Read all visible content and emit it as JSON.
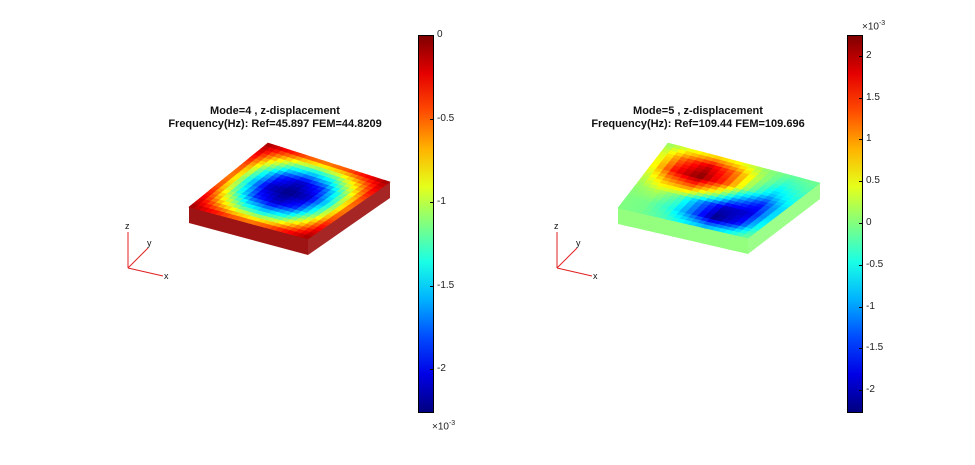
{
  "chart_data": [
    {
      "type": "heatmap",
      "title": "Mode=4 , z-displacement",
      "subtitle": "Frequency(Hz): Ref=45.897 FEM=44.8209",
      "colorbar": {
        "min": -2.25,
        "max": 0,
        "ticks": [
          0,
          -0.5,
          -1,
          -1.5,
          -2
        ],
        "tick_labels": [
          "0",
          "-0.5",
          "-1",
          "-1.5",
          "-2"
        ],
        "exponent_label": "×10",
        "exponent_power": "-3",
        "exponent_position": "bottom",
        "colormap": "jet"
      },
      "axes_triad": [
        "x",
        "y",
        "z"
      ],
      "values": [
        [
          -0.05,
          -0.2,
          -0.35,
          -0.42,
          -0.35,
          -0.2,
          -0.05
        ],
        [
          -0.2,
          -0.75,
          -1.2,
          -1.4,
          -1.2,
          -0.75,
          -0.2
        ],
        [
          -0.35,
          -1.2,
          -1.85,
          -2.1,
          -1.85,
          -1.2,
          -0.35
        ],
        [
          -0.42,
          -1.4,
          -2.1,
          -2.25,
          -2.1,
          -1.4,
          -0.42
        ],
        [
          -0.35,
          -1.2,
          -1.85,
          -2.1,
          -1.85,
          -1.2,
          -0.35
        ],
        [
          -0.2,
          -0.75,
          -1.2,
          -1.4,
          -1.2,
          -0.75,
          -0.2
        ],
        [
          -0.05,
          -0.2,
          -0.35,
          -0.42,
          -0.35,
          -0.2,
          -0.05
        ]
      ]
    },
    {
      "type": "heatmap",
      "title": "Mode=5 , z-displacement",
      "subtitle": "Frequency(Hz): Ref=109.44 FEM=109.696",
      "colorbar": {
        "min": -2.25,
        "max": 2.25,
        "ticks": [
          2,
          1.5,
          1,
          0.5,
          0,
          -0.5,
          -1,
          -1.5,
          -2
        ],
        "tick_labels": [
          "2",
          "1.5",
          "1",
          "0.5",
          "0",
          "-0.5",
          "-1",
          "-1.5",
          "-2"
        ],
        "exponent_label": "×10",
        "exponent_power": "-3",
        "exponent_position": "top",
        "colormap": "jet"
      },
      "axes_triad": [
        "x",
        "y",
        "z"
      ],
      "values": [
        [
          0.05,
          0.4,
          0.6,
          0.4,
          0.05,
          -0.1,
          -0.05
        ],
        [
          0.3,
          1.3,
          1.9,
          1.3,
          0.2,
          -0.4,
          -0.2
        ],
        [
          0.4,
          1.7,
          2.25,
          1.5,
          0.1,
          -0.8,
          -0.4
        ],
        [
          0.2,
          0.9,
          1.2,
          0.4,
          -0.9,
          -1.6,
          -0.6
        ],
        [
          0.05,
          0.2,
          -0.2,
          -1.2,
          -2.0,
          -1.9,
          -0.5
        ],
        [
          0.0,
          -0.05,
          -0.4,
          -1.3,
          -2.25,
          -1.7,
          -0.3
        ],
        [
          0.0,
          -0.05,
          -0.2,
          -0.5,
          -0.7,
          -0.4,
          -0.05
        ]
      ]
    }
  ]
}
